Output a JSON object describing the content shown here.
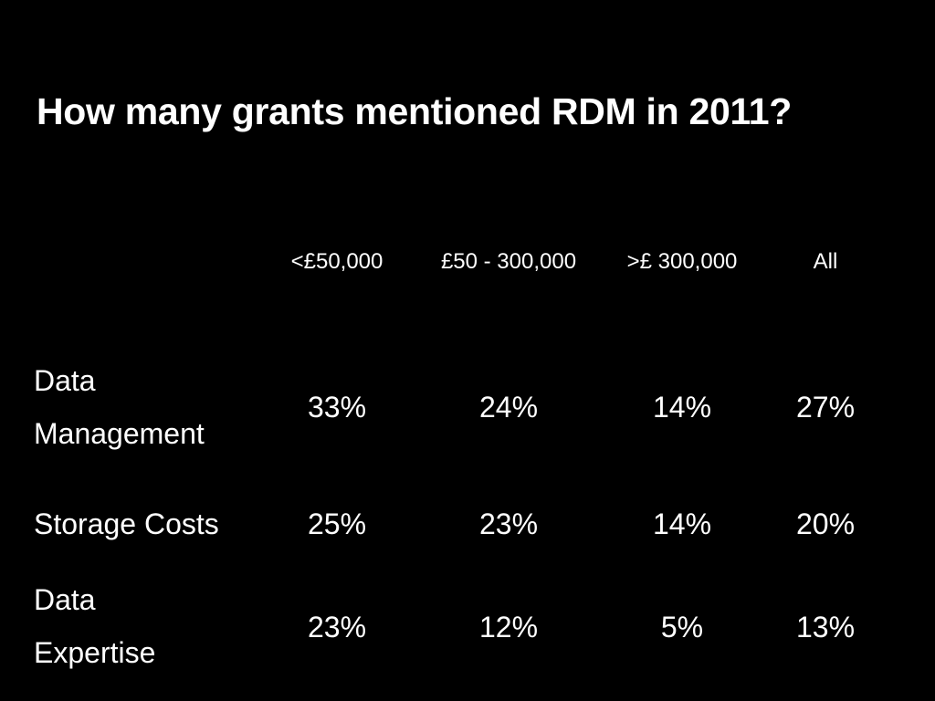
{
  "slide": {
    "title": "How many grants mentioned RDM in 2011?"
  },
  "table": {
    "columns": [
      "<£50,000",
      "£50 - 300,000",
      ">£ 300,000",
      "All"
    ],
    "rows": [
      {
        "label_lines": [
          "Data",
          "Management"
        ],
        "values": [
          "33%",
          "24%",
          "14%",
          "27%"
        ]
      },
      {
        "label_lines": [
          "Storage Costs"
        ],
        "values": [
          "25%",
          "23%",
          "14%",
          "20%"
        ]
      },
      {
        "label_lines": [
          "Data",
          "Expertise"
        ],
        "values": [
          "23%",
          "12%",
          "5%",
          "13%"
        ]
      }
    ]
  }
}
